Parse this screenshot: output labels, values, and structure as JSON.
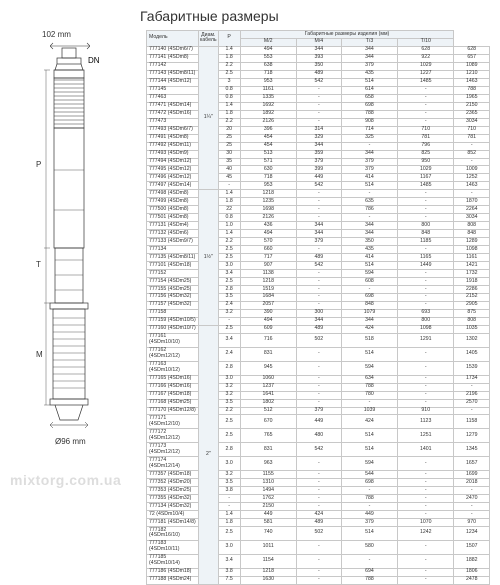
{
  "title": "Габаритные размеры",
  "diagram": {
    "top_dim": "102 mm",
    "dn": "DN",
    "side_letters": [
      "P",
      "T",
      "M"
    ],
    "bottom_dim": "Ø96 mm"
  },
  "watermark": "mixtorg.com.ua",
  "headers": {
    "model": "Модель",
    "dn": "Диам. кабель",
    "group": "Габаритные размеры изделия (мм)",
    "cols": [
      "P",
      "M/2",
      "M/4",
      "T/3",
      "T/10"
    ]
  },
  "dn_groups": [
    {
      "dn": "1¼\"",
      "start": 0,
      "end": 18
    },
    {
      "dn": "1½\"",
      "start": 18,
      "end": 35
    },
    {
      "dn": "2\"",
      "start": 35,
      "end": 62
    }
  ],
  "rows": [
    {
      "m": "777140 (4SDm6/7)",
      "p": "1.4",
      "v": [
        "494",
        "344",
        "344",
        "628",
        "628"
      ]
    },
    {
      "m": "777141 (4SDm8)",
      "p": "1.8",
      "v": [
        "553",
        "393",
        "344",
        "922",
        "657"
      ]
    },
    {
      "m": "777142",
      "p": "2.2",
      "v": [
        "638",
        "350",
        "379",
        "1029",
        "1089"
      ]
    },
    {
      "m": "777143 (4SDm8/11)",
      "p": "2.5",
      "v": [
        "718",
        "489",
        "435",
        "1227",
        "1210"
      ]
    },
    {
      "m": "777144 (4SDm12)",
      "p": "3",
      "v": [
        "953",
        "542",
        "514",
        "1485",
        "1463"
      ]
    },
    {
      "m": "777145",
      "p": "0.8",
      "v": [
        "1161",
        "-",
        "614",
        "-",
        "788"
      ]
    },
    {
      "m": "777463",
      "p": "0.8",
      "v": [
        "1335",
        "-",
        "658",
        "-",
        "1965"
      ]
    },
    {
      "m": "777471 (4SDm14)",
      "p": "1.4",
      "v": [
        "1692",
        "-",
        "698",
        "-",
        "2150"
      ]
    },
    {
      "m": "777472 (4SDm16)",
      "p": "1.8",
      "v": [
        "1892",
        "-",
        "788",
        "-",
        "2365"
      ]
    },
    {
      "m": "777473",
      "p": "2.2",
      "v": [
        "2126",
        "-",
        "908",
        "-",
        "3034"
      ]
    },
    {
      "m": "777493 (4SDm6/7)",
      "p": "20",
      "v": [
        "396",
        "314",
        "714",
        "710",
        "710"
      ]
    },
    {
      "m": "777491 (4SDm8)",
      "p": "25",
      "v": [
        "454",
        "329",
        "325",
        "781",
        "781"
      ]
    },
    {
      "m": "777492 (4SDm11)",
      "p": "25",
      "v": [
        "454",
        "344",
        "-",
        "796",
        "-"
      ]
    },
    {
      "m": "777493 (4SDm9)",
      "p": "30",
      "v": [
        "513",
        "359",
        "344",
        "825",
        "852"
      ]
    },
    {
      "m": "777494 (4SDm12)",
      "p": "35",
      "v": [
        "571",
        "379",
        "379",
        "950",
        "-"
      ]
    },
    {
      "m": "777495 (4SDm12)",
      "p": "40",
      "v": [
        "630",
        "399",
        "379",
        "1029",
        "1009"
      ]
    },
    {
      "m": "777496 (4SDm12)",
      "p": "45",
      "v": [
        "718",
        "449",
        "414",
        "1167",
        "1252"
      ]
    },
    {
      "m": "777497 (4SDm14)",
      "p": "-",
      "v": [
        "953",
        "542",
        "514",
        "1485",
        "1463"
      ]
    },
    {
      "m": "777498 (4SDm8)",
      "p": "1.4",
      "v": [
        "1218",
        "-",
        "-",
        "-",
        "-"
      ]
    },
    {
      "m": "777499 (4SDm8)",
      "p": "1.8",
      "v": [
        "1235",
        "-",
        "635",
        "-",
        "1870"
      ]
    },
    {
      "m": "777500 (4SDm8)",
      "p": "22",
      "v": [
        "1698",
        "-",
        "786",
        "-",
        "2264"
      ]
    },
    {
      "m": "777501 (4SDm8)",
      "p": "0.8",
      "v": [
        "2126",
        "-",
        "-",
        "-",
        "3034"
      ]
    },
    {
      "m": "777131 (4SDm4)",
      "p": "1.0",
      "v": [
        "436",
        "344",
        "344",
        "800",
        "808"
      ]
    },
    {
      "m": "777132 (4SDm6)",
      "p": "1.4",
      "v": [
        "494",
        "344",
        "344",
        "848",
        "848"
      ]
    },
    {
      "m": "777133 (4SDm9/7)",
      "p": "2.2",
      "v": [
        "570",
        "379",
        "350",
        "1185",
        "1289"
      ]
    },
    {
      "m": "777134",
      "p": "2.5",
      "v": [
        "660",
        "-",
        "435",
        "-",
        "1098"
      ]
    },
    {
      "m": "777135 (4SDm8/11)",
      "p": "2.5",
      "v": [
        "717",
        "489",
        "414",
        "1165",
        "1161"
      ]
    },
    {
      "m": "777101 (4SDm18)",
      "p": "3.0",
      "v": [
        "907",
        "542",
        "514",
        "1449",
        "1421"
      ]
    },
    {
      "m": "777152",
      "p": "3.4",
      "v": [
        "1138",
        "-",
        "594",
        "-",
        "1732"
      ]
    },
    {
      "m": "777154 (4SDm25)",
      "p": "2.5",
      "v": [
        "1218",
        "-",
        "608",
        "-",
        "1918"
      ]
    },
    {
      "m": "777155 (4SDm25)",
      "p": "2.8",
      "v": [
        "1519",
        "-",
        "-",
        "-",
        "2286"
      ]
    },
    {
      "m": "777156 (4SDm32)",
      "p": "3.5",
      "v": [
        "1684",
        "-",
        "698",
        "-",
        "2152"
      ]
    },
    {
      "m": "777157 (4SDm32)",
      "p": "2.4",
      "v": [
        "2057",
        "-",
        "848",
        "-",
        "2905"
      ]
    },
    {
      "m": "777158",
      "p": "3.2",
      "v": [
        "390",
        "300",
        "1079",
        "693",
        "875"
      ]
    },
    {
      "m": "777159 (4SDm10/5)",
      "p": "-",
      "v": [
        "494",
        "344",
        "344",
        "800",
        "808"
      ]
    },
    {
      "m": "777160 (4SDm10/7)",
      "p": "2.5",
      "v": [
        "609",
        "489",
        "424",
        "1098",
        "1035"
      ]
    },
    {
      "m": "777161 (4SDm10/10)",
      "p": "3.4",
      "v": [
        "716",
        "502",
        "518",
        "1291",
        "1302"
      ]
    },
    {
      "m": "777162 (4SDm12/12)",
      "p": "2.4",
      "v": [
        "831",
        "-",
        "514",
        "-",
        "1405"
      ]
    },
    {
      "m": "777163 (4SDm10/12)",
      "p": "2.8",
      "v": [
        "945",
        "-",
        "594",
        "-",
        "1539"
      ]
    },
    {
      "m": "777165 (4SDm16)",
      "p": "3.0",
      "v": [
        "1060",
        "-",
        "634",
        "-",
        "1734"
      ]
    },
    {
      "m": "777166 (4SDm16)",
      "p": "3.2",
      "v": [
        "1237",
        "-",
        "788",
        "-",
        "-"
      ]
    },
    {
      "m": "777167 (4SDm18)",
      "p": "3.2",
      "v": [
        "1641",
        "-",
        "780",
        "-",
        "2196"
      ]
    },
    {
      "m": "777168 (4SDm25)",
      "p": "3.5",
      "v": [
        "1802",
        "-",
        "-",
        "-",
        "2570"
      ]
    },
    {
      "m": "777170 (4SDm12/8)",
      "p": "2.2",
      "v": [
        "512",
        "379",
        "1039",
        "910",
        "-"
      ]
    },
    {
      "m": "777171 (4SDm12/10)",
      "p": "2.5",
      "v": [
        "670",
        "449",
        "424",
        "1123",
        "1158"
      ]
    },
    {
      "m": "777172 (4SDm12/12)",
      "p": "2.5",
      "v": [
        "765",
        "480",
        "514",
        "1251",
        "1279"
      ]
    },
    {
      "m": "777173 (4SDm12/12)",
      "p": "2.8",
      "v": [
        "831",
        "542",
        "514",
        "1401",
        "1345"
      ]
    },
    {
      "m": "777174 (4SDm12/14)",
      "p": "3.0",
      "v": [
        "963",
        "-",
        "594",
        "-",
        "1657"
      ]
    },
    {
      "m": "777357 (4SDm18)",
      "p": "3.2",
      "v": [
        "1155",
        "-",
        "544",
        "-",
        "1699"
      ]
    },
    {
      "m": "777352 (4SDm20)",
      "p": "3.5",
      "v": [
        "1310",
        "-",
        "698",
        "-",
        "2018"
      ]
    },
    {
      "m": "777353 (4SDm25)",
      "p": "3.8",
      "v": [
        "1494",
        "-",
        "-",
        "-",
        "-"
      ]
    },
    {
      "m": "777355 (4SDm32)",
      "p": "-",
      "v": [
        "1762",
        "-",
        "788",
        "-",
        "2470"
      ]
    },
    {
      "m": "777134 (4SDm32)",
      "p": "-",
      "v": [
        "2150",
        "-",
        "-",
        "-",
        "-"
      ]
    },
    {
      "m": "72 (4SDm10/4)",
      "p": "1.4",
      "v": [
        "449",
        "424",
        "449",
        "-",
        "-"
      ]
    },
    {
      "m": "777181 (4SDm14/8)",
      "p": "1.8",
      "v": [
        "581",
        "489",
        "379",
        "1070",
        "970"
      ]
    },
    {
      "m": "777182 (4SDm16/10)",
      "p": "2.5",
      "v": [
        "740",
        "502",
        "514",
        "1242",
        "1234"
      ]
    },
    {
      "m": "777183 (4SDm10/11)",
      "p": "3.0",
      "v": [
        "1011",
        "-",
        "580",
        "-",
        "1507"
      ]
    },
    {
      "m": "777185 (4SDm10/14)",
      "p": "3.4",
      "v": [
        "1154",
        "-",
        "-",
        "-",
        "1882"
      ]
    },
    {
      "m": "777186 (4SDm18)",
      "p": "3.8",
      "v": [
        "1218",
        "-",
        "694",
        "-",
        "1806"
      ]
    },
    {
      "m": "777188 (4SDm24)",
      "p": "7.5",
      "v": [
        "1630",
        "-",
        "788",
        "-",
        "2478"
      ]
    }
  ]
}
